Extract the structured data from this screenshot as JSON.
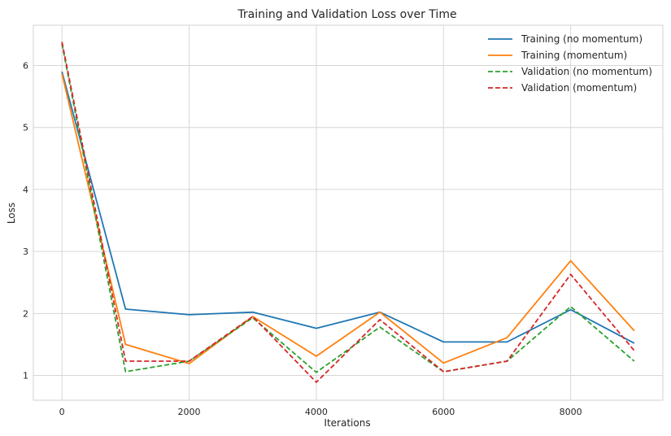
{
  "chart_data": {
    "type": "line",
    "title": "Training and Validation Loss over Time",
    "xlabel": "Iterations",
    "ylabel": "Loss",
    "x": [
      0,
      1000,
      2000,
      3000,
      4000,
      5000,
      6000,
      7000,
      8000,
      9000
    ],
    "xlim": [
      -450,
      9450
    ],
    "ylim": [
      0.6,
      6.65
    ],
    "x_ticks": [
      0,
      2000,
      4000,
      6000,
      8000
    ],
    "y_ticks": [
      1,
      2,
      3,
      4,
      5,
      6
    ],
    "grid": true,
    "legend_position": "top-right",
    "series": [
      {
        "name": "Training (no momentum)",
        "color": "#1f77b4",
        "dash": "solid",
        "values": [
          5.9,
          2.07,
          1.98,
          2.02,
          1.76,
          2.02,
          1.54,
          1.54,
          2.06,
          1.52
        ]
      },
      {
        "name": "Training (momentum)",
        "color": "#ff7f0e",
        "dash": "solid",
        "values": [
          5.87,
          1.5,
          1.19,
          1.95,
          1.31,
          2.02,
          1.2,
          1.61,
          2.85,
          1.72
        ]
      },
      {
        "name": "Validation (no momentum)",
        "color": "#2ca02c",
        "dash": "dashed",
        "values": [
          6.35,
          1.06,
          1.23,
          1.93,
          1.05,
          1.78,
          1.06,
          1.23,
          2.11,
          1.23
        ]
      },
      {
        "name": "Validation (momentum)",
        "color": "#d62728",
        "dash": "dashed",
        "values": [
          6.38,
          1.23,
          1.23,
          1.95,
          0.89,
          1.9,
          1.06,
          1.23,
          2.63,
          1.4
        ]
      }
    ]
  }
}
